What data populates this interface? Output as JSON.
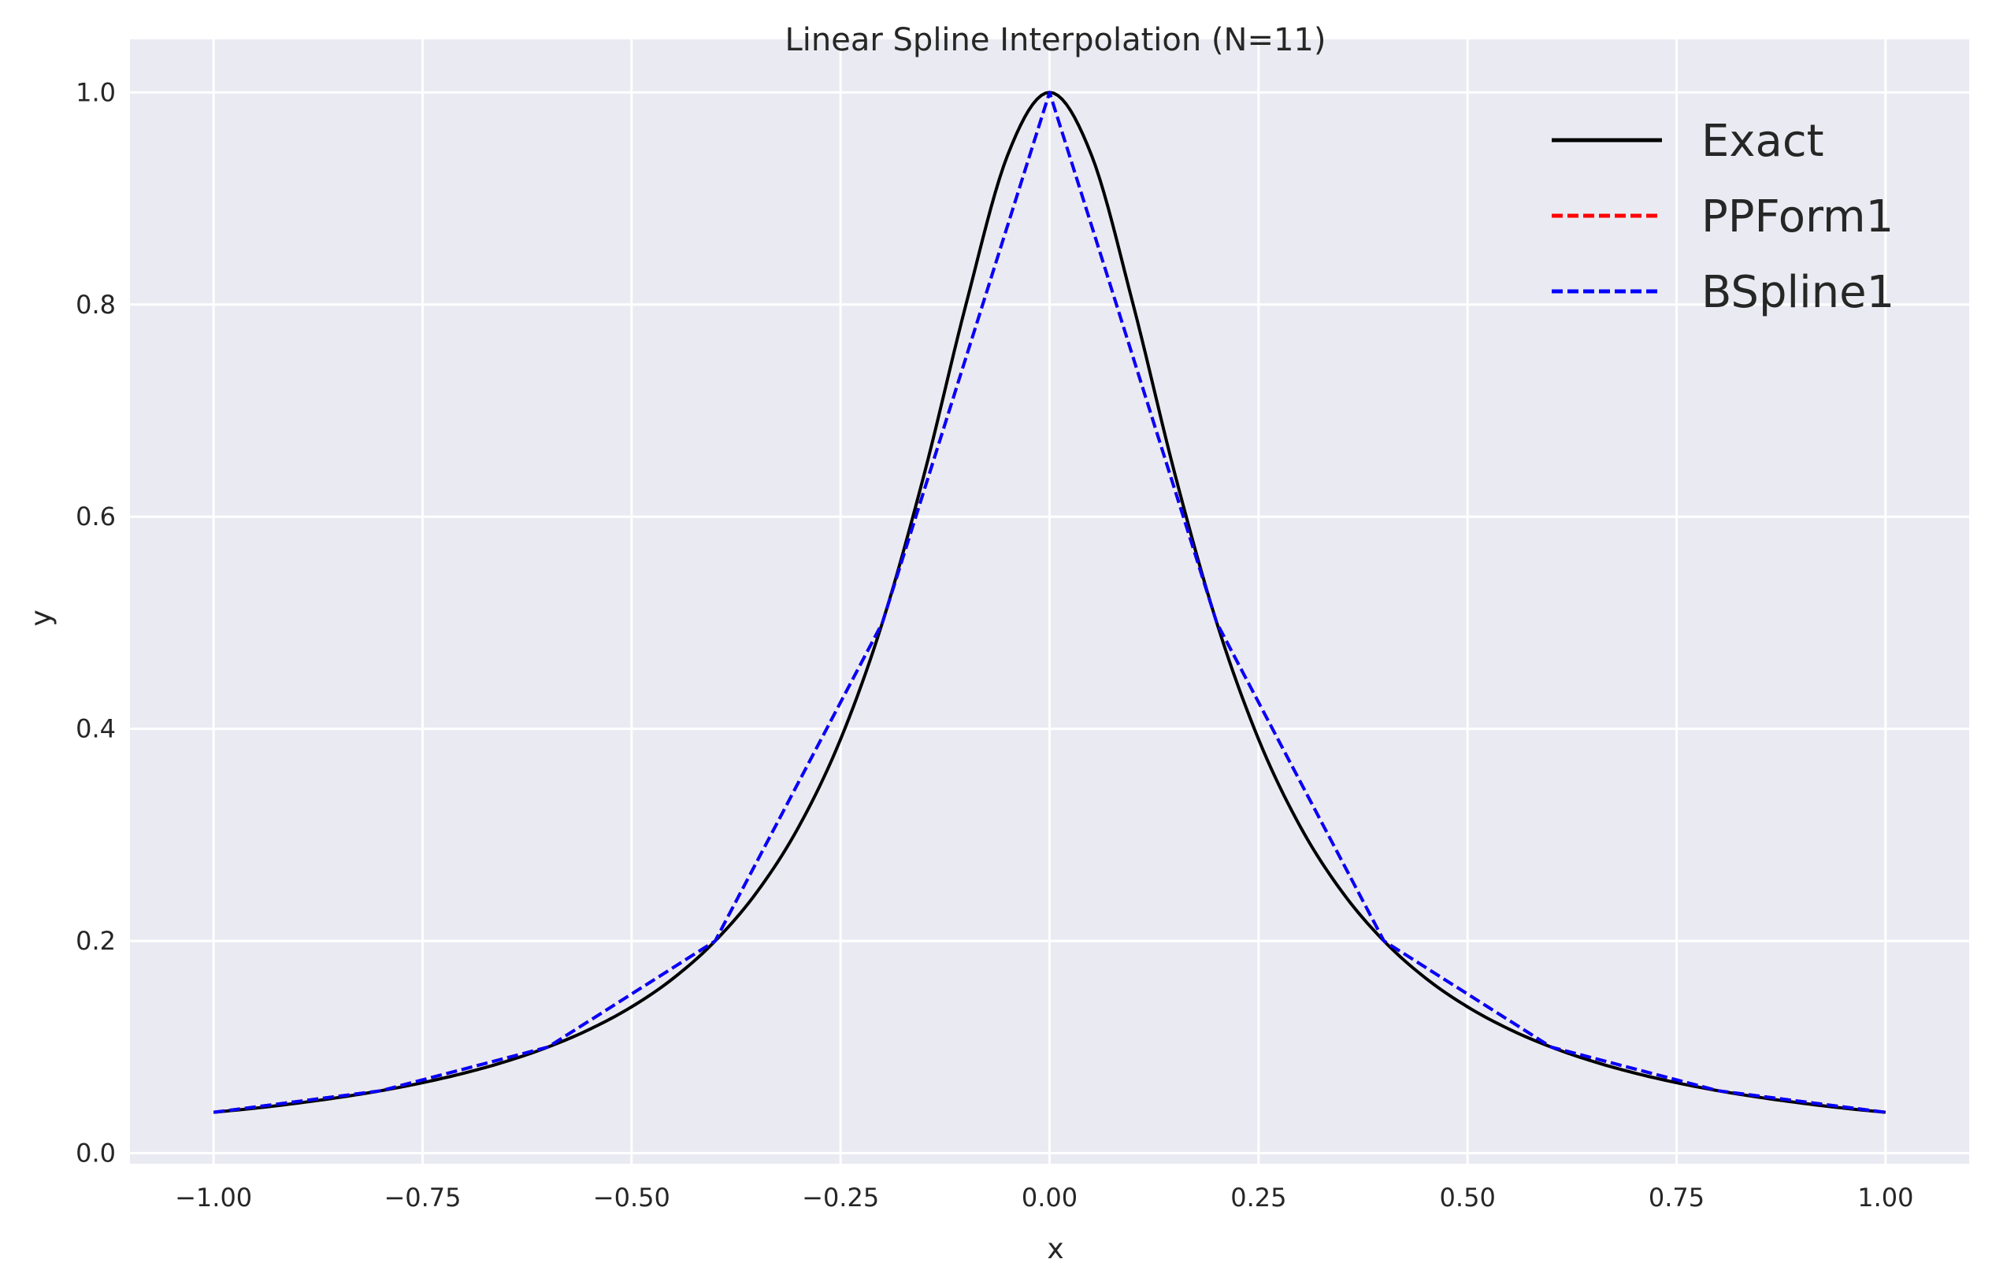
{
  "chart_data": {
    "type": "line",
    "title": "Linear Spline Interpolation (N=11)",
    "xlabel": "x",
    "ylabel": "y",
    "xlim": [
      -1.1,
      1.1
    ],
    "ylim": [
      -0.01,
      1.05
    ],
    "xticks": [
      -1.0,
      -0.75,
      -0.5,
      -0.25,
      0.0,
      0.25,
      0.5,
      0.75,
      1.0
    ],
    "xtick_labels": [
      "−1.00",
      "−0.75",
      "−0.50",
      "−0.25",
      "0.00",
      "0.25",
      "0.50",
      "0.75",
      "1.00"
    ],
    "yticks": [
      0.0,
      0.2,
      0.4,
      0.6,
      0.8,
      1.0
    ],
    "ytick_labels": [
      "0.0",
      "0.2",
      "0.4",
      "0.6",
      "0.8",
      "1.0"
    ],
    "grid": true,
    "legend_position": "top-right",
    "background": "#EAEAF2",
    "series": [
      {
        "name": "Exact",
        "color": "#000000",
        "style": "solid",
        "x": [
          -1.0,
          -0.95,
          -0.9,
          -0.85,
          -0.8,
          -0.75,
          -0.7,
          -0.65,
          -0.6,
          -0.55,
          -0.5,
          -0.45,
          -0.4,
          -0.35,
          -0.3,
          -0.25,
          -0.2,
          -0.15,
          -0.1,
          -0.05,
          0.0,
          0.05,
          0.1,
          0.15,
          0.2,
          0.25,
          0.3,
          0.35,
          0.4,
          0.45,
          0.5,
          0.55,
          0.6,
          0.65,
          0.7,
          0.75,
          0.8,
          0.85,
          0.9,
          0.95,
          1.0
        ],
        "y": [
          0.0385,
          0.0424,
          0.0471,
          0.0525,
          0.0588,
          0.0664,
          0.0755,
          0.0865,
          0.1,
          0.1168,
          0.1379,
          0.1649,
          0.2,
          0.2462,
          0.3077,
          0.3902,
          0.5,
          0.64,
          0.8,
          0.9412,
          1.0,
          0.9412,
          0.8,
          0.64,
          0.5,
          0.3902,
          0.3077,
          0.2462,
          0.2,
          0.1649,
          0.1379,
          0.1168,
          0.1,
          0.0865,
          0.0755,
          0.0664,
          0.0588,
          0.0525,
          0.0471,
          0.0424,
          0.0385
        ]
      },
      {
        "name": "PPForm1",
        "color": "#FF0000",
        "style": "dashed",
        "x": [
          -1.0,
          -0.8,
          -0.6,
          -0.4,
          -0.2,
          0.0,
          0.2,
          0.4,
          0.6,
          0.8,
          1.0
        ],
        "y": [
          0.0385,
          0.0588,
          0.1,
          0.2,
          0.5,
          1.0,
          0.5,
          0.2,
          0.1,
          0.0588,
          0.0385
        ]
      },
      {
        "name": "BSpline1",
        "color": "#0000FF",
        "style": "dashed",
        "x": [
          -1.0,
          -0.8,
          -0.6,
          -0.4,
          -0.2,
          0.0,
          0.2,
          0.4,
          0.6,
          0.8,
          1.0
        ],
        "y": [
          0.0385,
          0.0588,
          0.1,
          0.2,
          0.5,
          1.0,
          0.5,
          0.2,
          0.1,
          0.0588,
          0.0385
        ]
      }
    ]
  }
}
